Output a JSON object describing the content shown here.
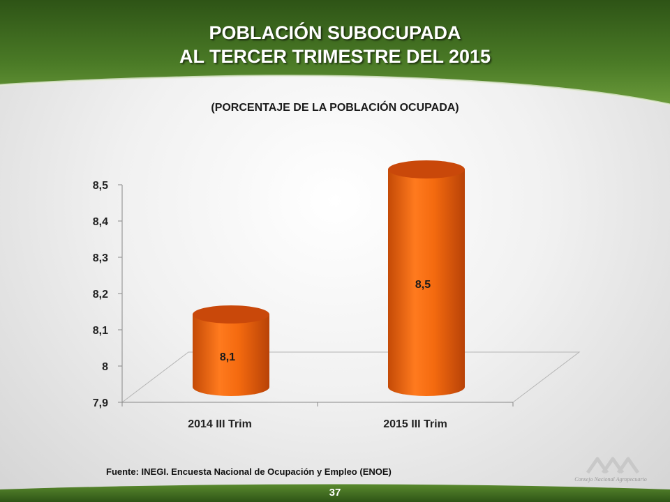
{
  "title_line1": "POBLACIÓN SUBOCUPADA",
  "title_line2": "AL TERCER TRIMESTRE DEL 2015",
  "subtitle": "(PORCENTAJE DE LA POBLACIÓN OCUPADA)",
  "source": "Fuente: INEGI. Encuesta Nacional de Ocupación y Empleo (ENOE)",
  "page_number": "37",
  "logo_text": "Consejo Nacional Agropecuario",
  "colors": {
    "header_green": "#3f6b1f",
    "bar_orange": "#f06a0c",
    "bar_top": "#c9480a"
  },
  "chart_data": {
    "type": "bar",
    "categories": [
      "2014 III Trim",
      "2015 III Trim"
    ],
    "values": [
      8.1,
      8.5
    ],
    "value_labels": [
      "8,1",
      "8,5"
    ],
    "ylim": [
      7.9,
      8.5
    ],
    "yticks": [
      7.9,
      8.0,
      8.1,
      8.2,
      8.3,
      8.4,
      8.5
    ],
    "ytick_labels": [
      "7,9",
      "8",
      "8,1",
      "8,2",
      "8,3",
      "8,4",
      "8,5"
    ],
    "grid": false,
    "legend": "none",
    "style": "3d-cylinder"
  }
}
